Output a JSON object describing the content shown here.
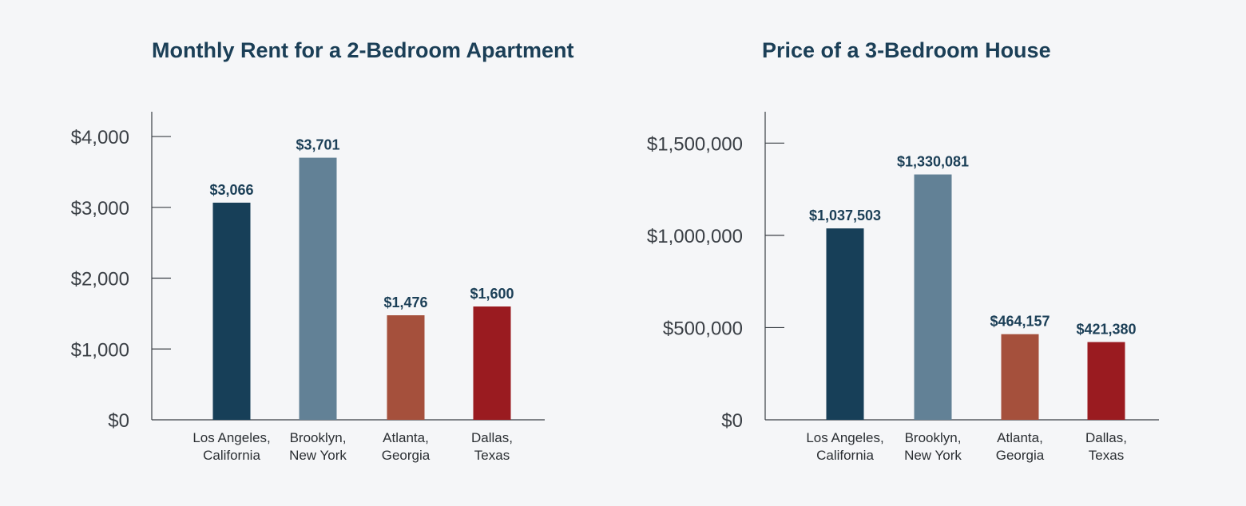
{
  "chart_data": [
    {
      "type": "bar",
      "title": "Monthly Rent for a 2-Bedroom Apartment",
      "categories": [
        [
          "Los Angeles,",
          "California"
        ],
        [
          "Brooklyn,",
          "New York"
        ],
        [
          "Atlanta,",
          "Georgia"
        ],
        [
          "Dallas,",
          "Texas"
        ]
      ],
      "values": [
        3066,
        3701,
        1476,
        1600
      ],
      "value_labels": [
        "$3,066",
        "$3,701",
        "$1,476",
        "$1,600"
      ],
      "colors": [
        "#173f58",
        "#628196",
        "#a5503c",
        "#9a1b20"
      ],
      "yticks": [
        0,
        1000,
        2000,
        3000,
        4000
      ],
      "ytick_labels": [
        "$0",
        "$1,000",
        "$2,000",
        "$3,000",
        "$4,000"
      ],
      "ylim": [
        0,
        4350
      ],
      "xlabel": "",
      "ylabel": "",
      "grid": false
    },
    {
      "type": "bar",
      "title": "Price of a 3-Bedroom House",
      "categories": [
        [
          "Los Angeles,",
          "California"
        ],
        [
          "Brooklyn,",
          "New York"
        ],
        [
          "Atlanta,",
          "Georgia"
        ],
        [
          "Dallas,",
          "Texas"
        ]
      ],
      "values": [
        1037503,
        1330081,
        464157,
        421380
      ],
      "value_labels": [
        "$1,037,503",
        "$1,330,081",
        "$464,157",
        "$421,380"
      ],
      "colors": [
        "#173f58",
        "#628196",
        "#a5503c",
        "#9a1b20"
      ],
      "yticks": [
        0,
        500000,
        1000000,
        1500000
      ],
      "ytick_labels": [
        "$0",
        "$500,000",
        "$1,000,000",
        "$1,500,000"
      ],
      "ylim": [
        0,
        1670000
      ],
      "xlabel": "",
      "ylabel": "",
      "grid": false
    }
  ]
}
